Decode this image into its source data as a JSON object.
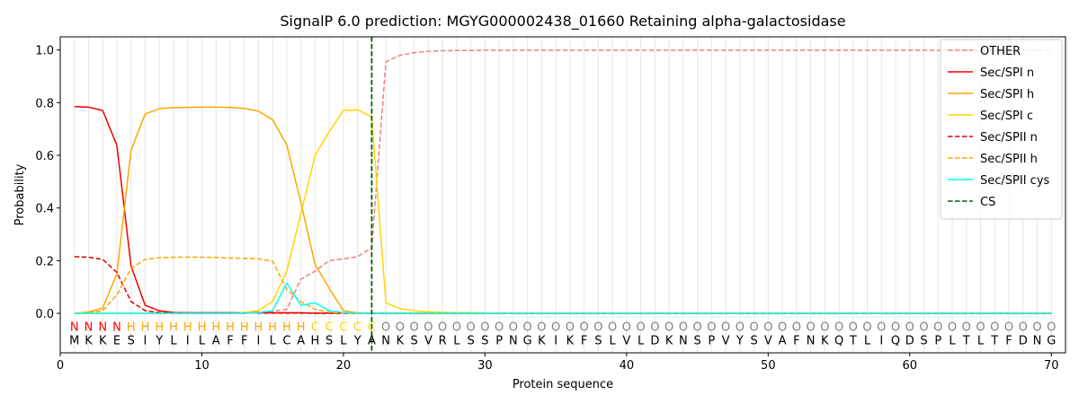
{
  "chart_data": {
    "type": "line",
    "title": "SignalP 6.0 prediction: MGYG000002438_01660 Retaining alpha-galactosidase",
    "xlabel": "Protein sequence",
    "ylabel": "Probability",
    "xlim": [
      0,
      71
    ],
    "ylim": [
      -0.15,
      1.05
    ],
    "xticks": [
      0,
      10,
      20,
      30,
      40,
      50,
      60,
      70
    ],
    "yticks": [
      0.0,
      0.2,
      0.4,
      0.6,
      0.8,
      1.0
    ],
    "ytick_labels": [
      "0.0",
      "0.2",
      "0.4",
      "0.6",
      "0.8",
      "1.0"
    ],
    "legend_position": "top-right",
    "x": [
      1,
      2,
      3,
      4,
      5,
      6,
      7,
      8,
      9,
      10,
      11,
      12,
      13,
      14,
      15,
      16,
      17,
      18,
      19,
      20,
      21,
      22,
      23,
      24,
      25,
      26,
      27,
      28,
      29,
      30,
      31,
      32,
      33,
      34,
      35,
      36,
      37,
      38,
      39,
      40,
      41,
      42,
      43,
      44,
      45,
      46,
      47,
      48,
      49,
      50,
      51,
      52,
      53,
      54,
      55,
      56,
      57,
      58,
      59,
      60,
      61,
      62,
      63,
      64,
      65,
      66,
      67,
      68,
      69,
      70
    ],
    "sequence": [
      "M",
      "K",
      "K",
      "E",
      "S",
      "I",
      "Y",
      "L",
      "I",
      "L",
      "A",
      "F",
      "F",
      "I",
      "L",
      "C",
      "A",
      "H",
      "S",
      "L",
      "Y",
      "A",
      "N",
      "K",
      "S",
      "V",
      "R",
      "L",
      "S",
      "S",
      "P",
      "N",
      "G",
      "K",
      "I",
      "K",
      "F",
      "S",
      "L",
      "V",
      "L",
      "D",
      "K",
      "N",
      "S",
      "P",
      "V",
      "Y",
      "S",
      "V",
      "A",
      "F",
      "N",
      "K",
      "Q",
      "T",
      "L",
      "I",
      "Q",
      "D",
      "S",
      "P",
      "L",
      "T",
      "L",
      "T",
      "F",
      "D",
      "N",
      "G"
    ],
    "region_labels": [
      "N",
      "N",
      "N",
      "N",
      "H",
      "H",
      "H",
      "H",
      "H",
      "H",
      "H",
      "H",
      "H",
      "H",
      "H",
      "H",
      "H",
      "C",
      "C",
      "C",
      "C",
      "C",
      "O",
      "O",
      "O",
      "O",
      "O",
      "O",
      "O",
      "O",
      "O",
      "O",
      "O",
      "O",
      "O",
      "O",
      "O",
      "O",
      "O",
      "O",
      "O",
      "O",
      "O",
      "O",
      "O",
      "O",
      "O",
      "O",
      "O",
      "O",
      "O",
      "O",
      "O",
      "O",
      "O",
      "O",
      "O",
      "O",
      "O",
      "O",
      "O",
      "O",
      "O",
      "O",
      "O",
      "O",
      "O",
      "O",
      "O",
      "O"
    ],
    "region_colors": {
      "N": "#ff0000",
      "H": "#ffa500",
      "C": "#ffd700",
      "O": "#808080"
    },
    "cleavage_site": 22,
    "series": [
      {
        "name": "OTHER",
        "color": "#f08080",
        "dash": "dashed",
        "values": [
          0.0,
          0.0,
          0.0,
          0.0,
          0.0,
          0.0,
          0.0,
          0.0,
          0.0,
          0.0,
          0.0,
          0.0,
          0.0,
          0.005,
          0.008,
          0.015,
          0.13,
          0.16,
          0.2,
          0.207,
          0.215,
          0.25,
          0.955,
          0.98,
          0.99,
          0.995,
          0.997,
          0.998,
          0.998,
          0.999,
          0.999,
          0.999,
          0.999,
          0.999,
          0.999,
          0.999,
          0.999,
          0.999,
          0.999,
          0.999,
          0.999,
          0.999,
          0.999,
          0.999,
          0.999,
          0.999,
          0.999,
          0.999,
          0.999,
          0.999,
          0.999,
          0.999,
          0.999,
          0.999,
          0.999,
          0.999,
          0.999,
          0.999,
          0.999,
          0.999,
          0.999,
          0.999,
          0.999,
          0.999,
          0.999,
          0.999,
          0.999,
          0.999,
          0.999,
          0.999
        ]
      },
      {
        "name": "Sec/SPI n",
        "color": "#ee0000",
        "dash": "solid",
        "values": [
          0.785,
          0.783,
          0.77,
          0.638,
          0.18,
          0.03,
          0.01,
          0.003,
          0.002,
          0.002,
          0.002,
          0.002,
          0.002,
          0.002,
          0.002,
          0.002,
          0.002,
          0.001,
          0.001,
          0.001,
          0.001,
          0.001,
          0.0,
          0.0,
          0.0,
          0.0,
          0.0,
          0.0,
          0.0,
          0.0,
          0.0,
          0.0,
          0.0,
          0.0,
          0.0,
          0.0,
          0.0,
          0.0,
          0.0,
          0.0,
          0.0,
          0.0,
          0.0,
          0.0,
          0.0,
          0.0,
          0.0,
          0.0,
          0.0,
          0.0,
          0.0,
          0.0,
          0.0,
          0.0,
          0.0,
          0.0,
          0.0,
          0.0,
          0.0,
          0.0,
          0.0,
          0.0,
          0.0,
          0.0,
          0.0,
          0.0,
          0.0,
          0.0,
          0.0,
          0.0
        ]
      },
      {
        "name": "Sec/SPI h",
        "color": "#ffa500",
        "dash": "solid",
        "values": [
          0.0,
          0.005,
          0.02,
          0.15,
          0.62,
          0.757,
          0.777,
          0.781,
          0.782,
          0.783,
          0.783,
          0.782,
          0.778,
          0.768,
          0.735,
          0.64,
          0.42,
          0.185,
          0.095,
          0.01,
          0.002,
          0.0,
          0.0,
          0.0,
          0.0,
          0.0,
          0.0,
          0.0,
          0.0,
          0.0,
          0.0,
          0.0,
          0.0,
          0.0,
          0.0,
          0.0,
          0.0,
          0.0,
          0.0,
          0.0,
          0.0,
          0.0,
          0.0,
          0.0,
          0.0,
          0.0,
          0.0,
          0.0,
          0.0,
          0.0,
          0.0,
          0.0,
          0.0,
          0.0,
          0.0,
          0.0,
          0.0,
          0.0,
          0.0,
          0.0,
          0.0,
          0.0,
          0.0,
          0.0,
          0.0,
          0.0,
          0.0,
          0.0,
          0.0,
          0.0
        ]
      },
      {
        "name": "Sec/SPI c",
        "color": "#ffd700",
        "dash": "solid",
        "values": [
          0.0,
          0.0,
          0.0,
          0.0,
          0.0,
          0.0,
          0.0,
          0.0,
          0.0,
          0.0,
          0.0,
          0.0,
          0.003,
          0.01,
          0.045,
          0.16,
          0.38,
          0.6,
          0.69,
          0.77,
          0.773,
          0.745,
          0.04,
          0.018,
          0.01,
          0.006,
          0.004,
          0.002,
          0.002,
          0.001,
          0.001,
          0.001,
          0.001,
          0.001,
          0.001,
          0.001,
          0.001,
          0.001,
          0.001,
          0.001,
          0.001,
          0.001,
          0.001,
          0.001,
          0.001,
          0.001,
          0.001,
          0.001,
          0.001,
          0.001,
          0.001,
          0.001,
          0.001,
          0.001,
          0.001,
          0.001,
          0.001,
          0.001,
          0.001,
          0.001,
          0.001,
          0.001,
          0.001,
          0.001,
          0.001,
          0.001,
          0.001,
          0.001,
          0.001,
          0.001
        ]
      },
      {
        "name": "Sec/SPII n",
        "color": "#dd0000",
        "dash": "dashed",
        "values": [
          0.215,
          0.213,
          0.205,
          0.155,
          0.045,
          0.01,
          0.003,
          0.001,
          0.001,
          0.001,
          0.001,
          0.001,
          0.001,
          0.001,
          0.001,
          0.001,
          0.001,
          0.0,
          0.0,
          0.0,
          0.0,
          0.0,
          0.0,
          0.0,
          0.0,
          0.0,
          0.0,
          0.0,
          0.0,
          0.0,
          0.0,
          0.0,
          0.0,
          0.0,
          0.0,
          0.0,
          0.0,
          0.0,
          0.0,
          0.0,
          0.0,
          0.0,
          0.0,
          0.0,
          0.0,
          0.0,
          0.0,
          0.0,
          0.0,
          0.0,
          0.0,
          0.0,
          0.0,
          0.0,
          0.0,
          0.0,
          0.0,
          0.0,
          0.0,
          0.0,
          0.0,
          0.0,
          0.0,
          0.0,
          0.0,
          0.0,
          0.0,
          0.0,
          0.0,
          0.0
        ]
      },
      {
        "name": "Sec/SPII h",
        "color": "#ffa500",
        "dash": "dashed",
        "values": [
          0.0,
          0.002,
          0.01,
          0.07,
          0.17,
          0.205,
          0.211,
          0.213,
          0.213,
          0.213,
          0.212,
          0.21,
          0.209,
          0.207,
          0.198,
          0.09,
          0.045,
          0.015,
          0.004,
          0.001,
          0.0,
          0.0,
          0.0,
          0.0,
          0.0,
          0.0,
          0.0,
          0.0,
          0.0,
          0.0,
          0.0,
          0.0,
          0.0,
          0.0,
          0.0,
          0.0,
          0.0,
          0.0,
          0.0,
          0.0,
          0.0,
          0.0,
          0.0,
          0.0,
          0.0,
          0.0,
          0.0,
          0.0,
          0.0,
          0.0,
          0.0,
          0.0,
          0.0,
          0.0,
          0.0,
          0.0,
          0.0,
          0.0,
          0.0,
          0.0,
          0.0,
          0.0,
          0.0,
          0.0,
          0.0,
          0.0,
          0.0,
          0.0,
          0.0,
          0.0
        ]
      },
      {
        "name": "Sec/SPII cys",
        "color": "#00ffff",
        "dash": "solid",
        "values": [
          0.0,
          0.0,
          0.0,
          0.0,
          0.0,
          0.0,
          0.0,
          0.0,
          0.0,
          0.0,
          0.0,
          0.0,
          0.0,
          0.002,
          0.01,
          0.115,
          0.03,
          0.04,
          0.01,
          0.003,
          0.001,
          0.0,
          0.0,
          0.0,
          0.0,
          0.0,
          0.0,
          0.0,
          0.0,
          0.0,
          0.0,
          0.0,
          0.0,
          0.0,
          0.0,
          0.0,
          0.0,
          0.0,
          0.0,
          0.0,
          0.0,
          0.0,
          0.0,
          0.0,
          0.0,
          0.0,
          0.0,
          0.0,
          0.0,
          0.0,
          0.0,
          0.0,
          0.0,
          0.0,
          0.0,
          0.0,
          0.0,
          0.0,
          0.0,
          0.0,
          0.0,
          0.0,
          0.0,
          0.0,
          0.0,
          0.0,
          0.0,
          0.0,
          0.0,
          0.0
        ]
      }
    ],
    "legend": [
      {
        "name": "OTHER",
        "color": "#f08080",
        "dash": "dashed"
      },
      {
        "name": "Sec/SPI n",
        "color": "#ee0000",
        "dash": "solid"
      },
      {
        "name": "Sec/SPI h",
        "color": "#ffa500",
        "dash": "solid"
      },
      {
        "name": "Sec/SPI c",
        "color": "#ffd700",
        "dash": "solid"
      },
      {
        "name": "Sec/SPII n",
        "color": "#dd0000",
        "dash": "dashed"
      },
      {
        "name": "Sec/SPII h",
        "color": "#ffa500",
        "dash": "dashed"
      },
      {
        "name": "Sec/SPII cys",
        "color": "#00ffff",
        "dash": "solid"
      },
      {
        "name": "CS",
        "color": "#006400",
        "dash": "dashed"
      }
    ]
  }
}
